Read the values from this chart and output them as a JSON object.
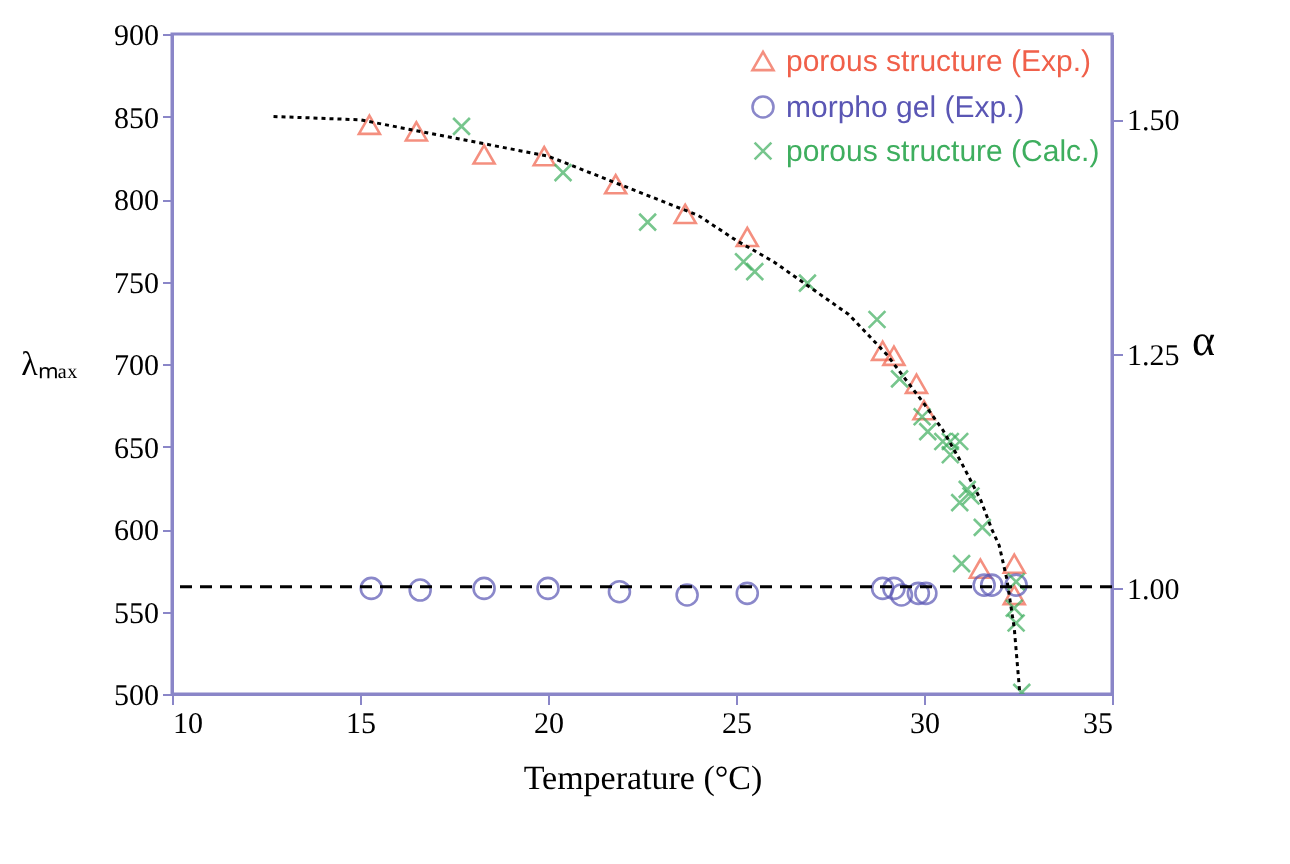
{
  "chart_data": {
    "type": "scatter",
    "xlabel": "Temperature (°C)",
    "ylabel": "λₘₐₓ",
    "y2label": "α",
    "xlim": [
      10,
      35
    ],
    "xticks": [
      10,
      15,
      20,
      25,
      30,
      35
    ],
    "ylim": [
      500,
      900
    ],
    "yticks": [
      500,
      550,
      600,
      650,
      700,
      750,
      800,
      850,
      900
    ],
    "y2lim": [
      0.887,
      1.591
    ],
    "y2ticks": [
      {
        "value": 1,
        "label": "1.00"
      },
      {
        "value": 1.25,
        "label": "1.25"
      },
      {
        "value": 1.5,
        "label": "1.50"
      }
    ],
    "grid": false,
    "legend": "top right",
    "series": [
      {
        "name": "porous structure (Exp.)",
        "color": "#f0604a",
        "marker": "triangle",
        "x": [
          15.25,
          16.5,
          18.3,
          19.9,
          21.8,
          23.65,
          25.3,
          28.9,
          29.2,
          29.8,
          30.0,
          31.5,
          32.4,
          32.4
        ],
        "values": [
          845,
          841,
          827,
          826,
          809,
          791,
          777,
          708,
          705,
          688,
          672,
          576,
          579,
          560
        ]
      },
      {
        "name": "morpho gel (Exp.)",
        "color": "#5a56b4",
        "marker": "circle",
        "x": [
          15.3,
          16.6,
          18.3,
          20.0,
          21.9,
          23.7,
          25.3,
          28.9,
          29.2,
          29.4,
          29.85,
          30.05,
          31.6,
          31.8,
          32.45
        ],
        "values": [
          564,
          563,
          564,
          564,
          562,
          560,
          561,
          564,
          564,
          560,
          561,
          561,
          566,
          566,
          566
        ]
      },
      {
        "name": "porous structure (Calc.)",
        "color": "#3eae5e",
        "marker": "cross",
        "x": [
          17.7,
          20.4,
          22.65,
          25.2,
          25.5,
          26.9,
          28.75,
          29.35,
          29.95,
          30.1,
          30.5,
          30.7,
          30.95,
          30.7,
          31.15,
          30.95,
          31.25,
          31.55,
          31.0,
          32.45,
          32.4,
          32.45,
          32.6
        ],
        "values": [
          844,
          816,
          786,
          762,
          756,
          749,
          727,
          691,
          668,
          659,
          653,
          653,
          653,
          645,
          624,
          616,
          620,
          601,
          579,
          568,
          552,
          543,
          501
        ]
      },
      {
        "type": "line",
        "color": "#000000",
        "line_style": "dotted",
        "x": [
          12.7,
          15,
          20,
          22,
          24,
          25,
          26,
          28,
          29,
          30,
          30.5,
          31,
          31.5,
          31.8,
          32,
          32.2,
          32.4,
          32.55
        ],
        "values": [
          850,
          848,
          826,
          808,
          790,
          775,
          762,
          730,
          706,
          676,
          660,
          640,
          618,
          600,
          590,
          570,
          540,
          500
        ]
      }
    ],
    "ref_lines": [
      {
        "axis": "y",
        "value": 565,
        "color": "#000000",
        "line_style": "dashed"
      }
    ]
  }
}
